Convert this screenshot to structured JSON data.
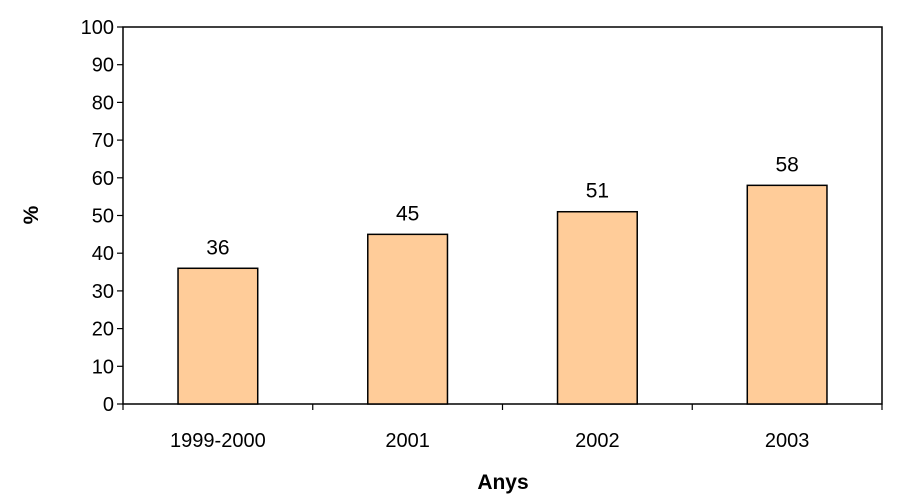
{
  "chart_data": {
    "type": "bar",
    "title": "",
    "xlabel": "Anys",
    "ylabel": "%",
    "categories": [
      "1999-2000",
      "2001",
      "2002",
      "2003"
    ],
    "values": [
      36,
      45,
      51,
      58
    ],
    "data_labels": [
      "36",
      "45",
      "51",
      "58"
    ],
    "ylim": [
      0,
      100
    ],
    "yticks": [
      0,
      10,
      20,
      30,
      40,
      50,
      60,
      70,
      80,
      90,
      100
    ],
    "grid": false,
    "legend": "none",
    "colors": {
      "bar_fill": "#FFCC99",
      "bar_stroke": "#000000",
      "axis": "#000000"
    }
  }
}
